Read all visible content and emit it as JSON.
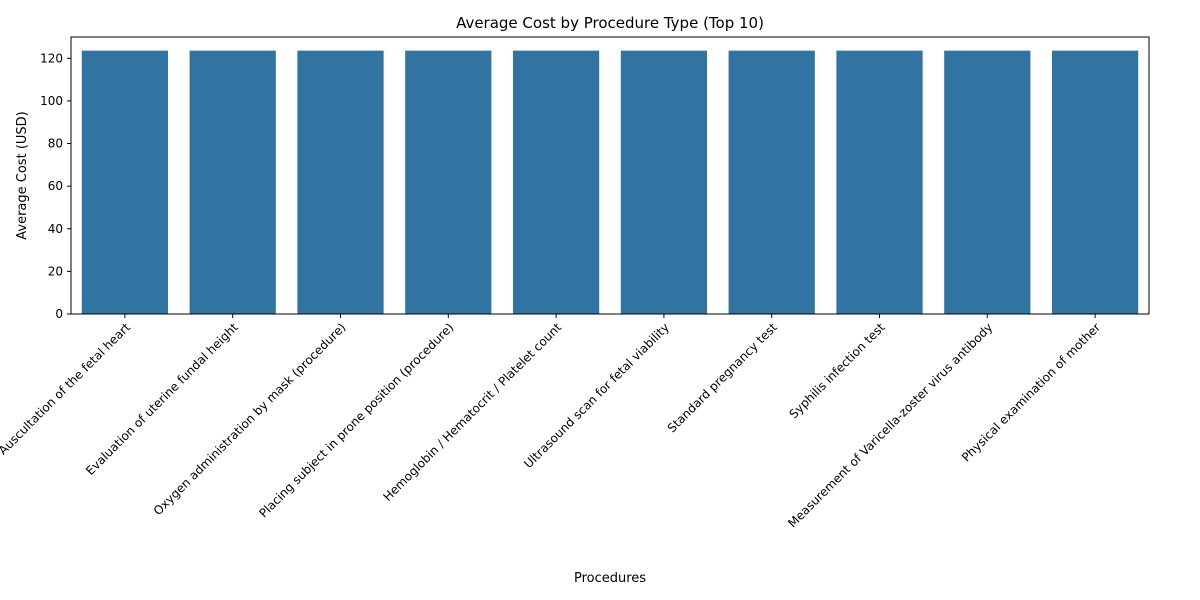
{
  "chart_data": {
    "type": "bar",
    "title": "Average Cost by Procedure Type (Top 10)",
    "xlabel": "Procedures",
    "ylabel": "Average Cost (USD)",
    "ylim": [
      0,
      130
    ],
    "yticks": [
      0,
      20,
      40,
      60,
      80,
      100,
      120
    ],
    "grid": false,
    "categories": [
      "Auscultation of the fetal heart",
      "Evaluation of uterine fundal height",
      "Oxygen administration by mask (procedure)",
      "Placing subject in prone position (procedure)",
      "Hemoglobin / Hematocrit / Platelet count",
      "Ultrasound scan for fetal viability",
      "Standard pregnancy test",
      "Syphilis infection test",
      "Measurement of Varicella-zoster virus antibody",
      "Physical examination of mother"
    ],
    "values": [
      123.6,
      123.6,
      123.6,
      123.6,
      123.6,
      123.6,
      123.6,
      123.6,
      123.6,
      123.6
    ],
    "bar_color": "#3274a1"
  }
}
